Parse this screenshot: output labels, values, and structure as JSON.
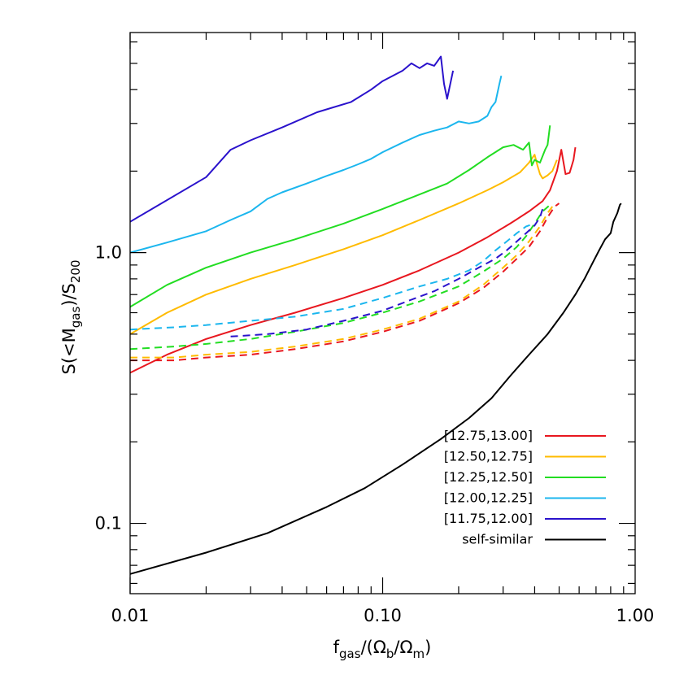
{
  "chart_data": {
    "type": "line",
    "xlabel": {
      "base": "f",
      "sub": "gas",
      "rest": "/(Ω",
      "sub2": "b",
      "mid": "/Ω",
      "sub3": "m",
      "end": ")"
    },
    "ylabel": {
      "pre": "S(<M",
      "sub": "gas",
      "mid": ")/S",
      "sub2": "200"
    },
    "xscale": "log",
    "yscale": "log",
    "xlim": [
      0.01,
      1.0
    ],
    "ylim": [
      0.055,
      6.5
    ],
    "xticks": [
      {
        "v": 0.01,
        "label": "0.01"
      },
      {
        "v": 0.1,
        "label": "0.10"
      },
      {
        "v": 1.0,
        "label": "1.00"
      }
    ],
    "yticks": [
      {
        "v": 0.1,
        "label": "0.1"
      },
      {
        "v": 1.0,
        "label": "1.0"
      }
    ],
    "legend_position": "bottom-right",
    "series": [
      {
        "name": "[12.75,13.00]",
        "color": "#e8171f",
        "style": "solid",
        "x": [
          0.01,
          0.014,
          0.02,
          0.03,
          0.045,
          0.07,
          0.1,
          0.14,
          0.2,
          0.26,
          0.32,
          0.38,
          0.43,
          0.46,
          0.49,
          0.51,
          0.53,
          0.55,
          0.57,
          0.58
        ],
        "y": [
          0.36,
          0.42,
          0.48,
          0.54,
          0.6,
          0.68,
          0.76,
          0.86,
          1.0,
          1.14,
          1.28,
          1.42,
          1.55,
          1.7,
          2.0,
          2.4,
          1.95,
          1.97,
          2.2,
          2.45
        ]
      },
      {
        "name": "[12.50,12.75]",
        "color": "#ffbb00",
        "style": "solid",
        "x": [
          0.01,
          0.014,
          0.02,
          0.03,
          0.045,
          0.07,
          0.1,
          0.14,
          0.2,
          0.26,
          0.3,
          0.35,
          0.38,
          0.4,
          0.41,
          0.42,
          0.43,
          0.45,
          0.47,
          0.49
        ],
        "y": [
          0.5,
          0.6,
          0.7,
          0.8,
          0.9,
          1.03,
          1.16,
          1.32,
          1.52,
          1.7,
          1.82,
          1.98,
          2.15,
          2.3,
          2.1,
          1.95,
          1.88,
          1.93,
          2.0,
          2.2
        ]
      },
      {
        "name": "[12.25,12.50]",
        "color": "#22dd22",
        "style": "solid",
        "x": [
          0.01,
          0.014,
          0.02,
          0.03,
          0.045,
          0.07,
          0.1,
          0.14,
          0.18,
          0.22,
          0.26,
          0.3,
          0.33,
          0.36,
          0.38,
          0.39,
          0.4,
          0.42,
          0.44,
          0.45,
          0.46
        ],
        "y": [
          0.63,
          0.76,
          0.88,
          1.0,
          1.12,
          1.28,
          1.45,
          1.64,
          1.8,
          2.02,
          2.25,
          2.45,
          2.5,
          2.4,
          2.55,
          2.1,
          2.2,
          2.15,
          2.4,
          2.5,
          2.95
        ]
      },
      {
        "name": "[12.00,12.25]",
        "color": "#1bb6ee",
        "style": "solid",
        "x": [
          0.01,
          0.014,
          0.02,
          0.025,
          0.03,
          0.035,
          0.04,
          0.05,
          0.06,
          0.07,
          0.08,
          0.09,
          0.1,
          0.12,
          0.14,
          0.16,
          0.18,
          0.2,
          0.22,
          0.24,
          0.26,
          0.27,
          0.28,
          0.29,
          0.295
        ],
        "y": [
          1.0,
          1.09,
          1.2,
          1.32,
          1.42,
          1.58,
          1.67,
          1.8,
          1.92,
          2.02,
          2.12,
          2.22,
          2.35,
          2.55,
          2.72,
          2.82,
          2.9,
          3.05,
          3.0,
          3.05,
          3.2,
          3.45,
          3.6,
          4.2,
          4.5
        ]
      },
      {
        "name": "[11.75,12.00]",
        "color": "#2a12cc",
        "style": "solid",
        "x": [
          0.01,
          0.02,
          0.025,
          0.03,
          0.04,
          0.055,
          0.075,
          0.09,
          0.1,
          0.12,
          0.13,
          0.14,
          0.15,
          0.16,
          0.17,
          0.175,
          0.18,
          0.19
        ],
        "y": [
          1.3,
          1.9,
          2.4,
          2.6,
          2.9,
          3.3,
          3.6,
          4.0,
          4.3,
          4.7,
          5.0,
          4.8,
          5.0,
          4.9,
          5.3,
          4.2,
          3.7,
          4.7
        ]
      },
      {
        "name": "self-similar",
        "color": "#000000",
        "style": "solid",
        "x": [
          0.01,
          0.02,
          0.035,
          0.06,
          0.085,
          0.12,
          0.17,
          0.22,
          0.27,
          0.32,
          0.38,
          0.45,
          0.52,
          0.58,
          0.63,
          0.68,
          0.72,
          0.76,
          0.8,
          0.82,
          0.85,
          0.87,
          0.88
        ],
        "y": [
          0.065,
          0.078,
          0.092,
          0.115,
          0.135,
          0.165,
          0.205,
          0.245,
          0.29,
          0.35,
          0.42,
          0.5,
          0.6,
          0.7,
          0.8,
          0.92,
          1.02,
          1.12,
          1.18,
          1.3,
          1.4,
          1.5,
          1.52
        ]
      },
      {
        "name": "",
        "color": "#e8171f",
        "style": "dashed",
        "x": [
          0.01,
          0.015,
          0.02,
          0.03,
          0.045,
          0.07,
          0.1,
          0.14,
          0.2,
          0.25,
          0.3,
          0.34,
          0.38,
          0.42,
          0.45,
          0.48,
          0.5
        ],
        "y": [
          0.4,
          0.4,
          0.41,
          0.42,
          0.44,
          0.47,
          0.51,
          0.56,
          0.65,
          0.74,
          0.85,
          0.95,
          1.05,
          1.2,
          1.35,
          1.48,
          1.52
        ]
      },
      {
        "name": "",
        "color": "#ffbb00",
        "style": "dashed",
        "x": [
          0.01,
          0.015,
          0.02,
          0.03,
          0.045,
          0.07,
          0.1,
          0.14,
          0.2,
          0.25,
          0.3,
          0.34,
          0.38,
          0.42,
          0.45,
          0.47
        ],
        "y": [
          0.41,
          0.41,
          0.42,
          0.43,
          0.45,
          0.48,
          0.52,
          0.57,
          0.66,
          0.76,
          0.88,
          0.98,
          1.1,
          1.25,
          1.4,
          1.48
        ]
      },
      {
        "name": "",
        "color": "#22dd22",
        "style": "dashed",
        "x": [
          0.01,
          0.015,
          0.02,
          0.03,
          0.045,
          0.07,
          0.1,
          0.14,
          0.2,
          0.25,
          0.3,
          0.34,
          0.37,
          0.4,
          0.43,
          0.46
        ],
        "y": [
          0.44,
          0.45,
          0.46,
          0.48,
          0.51,
          0.55,
          0.6,
          0.66,
          0.75,
          0.85,
          0.95,
          1.05,
          1.15,
          1.28,
          1.42,
          1.5
        ]
      },
      {
        "name": "",
        "color": "#1bb6ee",
        "style": "dashed",
        "x": [
          0.01,
          0.015,
          0.02,
          0.03,
          0.045,
          0.07,
          0.1,
          0.14,
          0.18,
          0.22,
          0.25,
          0.28,
          0.31,
          0.34,
          0.37,
          0.4
        ],
        "y": [
          0.52,
          0.53,
          0.54,
          0.56,
          0.58,
          0.62,
          0.68,
          0.75,
          0.8,
          0.86,
          0.93,
          1.02,
          1.1,
          1.18,
          1.25,
          1.28
        ]
      },
      {
        "name": "",
        "color": "#2a12cc",
        "style": "dashed",
        "x": [
          0.025,
          0.035,
          0.05,
          0.07,
          0.1,
          0.13,
          0.16,
          0.2,
          0.24,
          0.28,
          0.31,
          0.34,
          0.37,
          0.4,
          0.42,
          0.43
        ],
        "y": [
          0.49,
          0.5,
          0.52,
          0.56,
          0.61,
          0.67,
          0.72,
          0.8,
          0.88,
          0.95,
          1.02,
          1.1,
          1.18,
          1.26,
          1.35,
          1.45
        ]
      }
    ]
  }
}
